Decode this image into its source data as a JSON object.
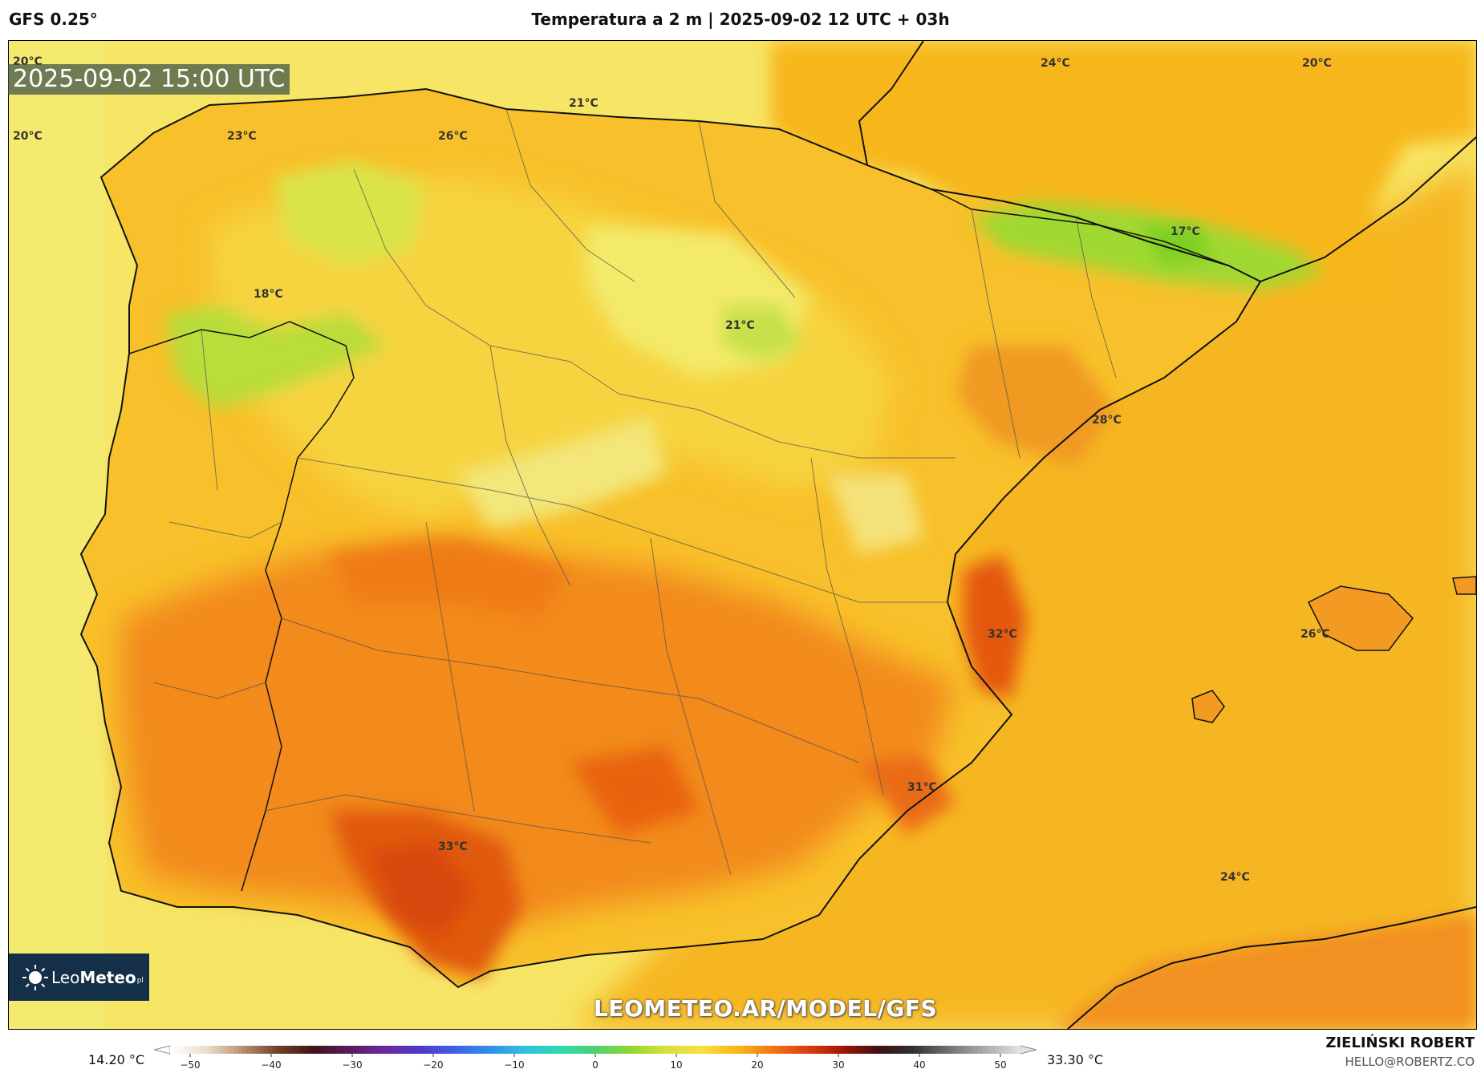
{
  "header": {
    "model": "GFS 0.25°",
    "title": "Temperatura a 2 m | 2025-09-02 12 UTC + 03h"
  },
  "map": {
    "timestamp": "2025-09-02 15:00 UTC",
    "website": "LEOMETEO.AR/MODEL/GFS",
    "logo_text_light": "Leo",
    "logo_text_bold": "Meteo",
    "logo_suffix": "pl",
    "temperature_labels": [
      {
        "id": "nw-corner",
        "text": "20°C"
      },
      {
        "id": "west-coast",
        "text": "20°C"
      },
      {
        "id": "galicia",
        "text": "23°C"
      },
      {
        "id": "asturias",
        "text": "26°C"
      },
      {
        "id": "cantabrian-sea",
        "text": "21°C"
      },
      {
        "id": "france-south",
        "text": "24°C"
      },
      {
        "id": "france-east",
        "text": "20°C"
      },
      {
        "id": "leon",
        "text": "18°C"
      },
      {
        "id": "soria",
        "text": "21°C"
      },
      {
        "id": "pyrenees",
        "text": "17°C"
      },
      {
        "id": "ebro",
        "text": "28°C"
      },
      {
        "id": "valencia",
        "text": "32°C"
      },
      {
        "id": "balearic",
        "text": "26°C"
      },
      {
        "id": "murcia",
        "text": "31°C"
      },
      {
        "id": "andalusia",
        "text": "33°C"
      },
      {
        "id": "alboran",
        "text": "24°C"
      }
    ],
    "colors": {
      "sea": "#f7e566",
      "warm": "#f7b81c",
      "hot": "#f07c18",
      "very_hot": "#d8460c",
      "cool": "#e8e860",
      "cold": "#8fd630"
    }
  },
  "legend": {
    "min_label": "14.20 °C",
    "max_label": "33.30 °C",
    "ticks": [
      "−50",
      "−40",
      "−30",
      "−20",
      "−10",
      "0",
      "10",
      "20",
      "30",
      "40",
      "50"
    ],
    "palette": [
      "#ffffff",
      "#e8dcc8",
      "#b89070",
      "#704028",
      "#401418",
      "#5a1a5a",
      "#6a2aa0",
      "#5038c8",
      "#4060e0",
      "#3090e8",
      "#30c0e0",
      "#30d8b0",
      "#50d070",
      "#90d830",
      "#d8e040",
      "#f8e040",
      "#f8b818",
      "#f07818",
      "#d84010",
      "#a01808",
      "#401010",
      "#303030",
      "#707070",
      "#a8a8a8",
      "#e0e0e0"
    ]
  },
  "credits": {
    "author": "ZIELIŃSKI ROBERT",
    "email": "HELLO@ROBERTZ.CO"
  }
}
